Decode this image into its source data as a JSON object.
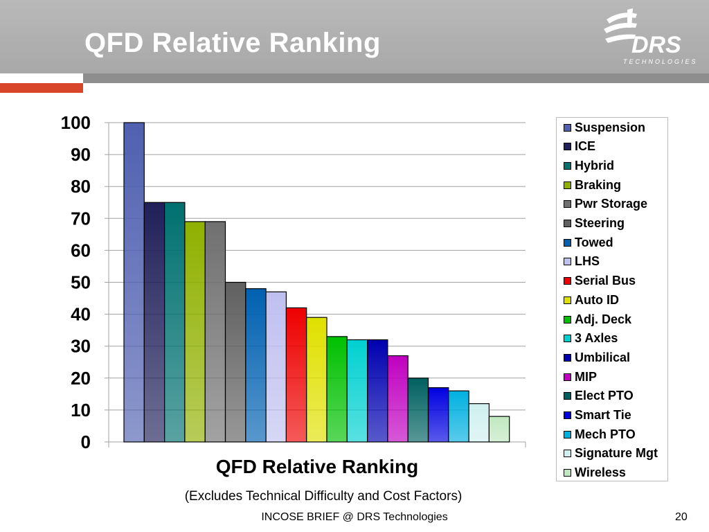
{
  "slide": {
    "title": "QFD Relative Ranking",
    "footer": "INCOSE BRIEF @ DRS Technologies",
    "page_number": "20",
    "logo_text": "DRS",
    "logo_subtext": "TECHNOLOGIES"
  },
  "chart_data": {
    "type": "bar",
    "xlabel": "QFD Relative Ranking",
    "subtitle": "(Excludes Technical Difficulty and Cost Factors)",
    "ylabel": "",
    "ylim": [
      0,
      100
    ],
    "yticks": [
      "0",
      "10",
      "20",
      "30",
      "40",
      "50",
      "60",
      "70",
      "80",
      "90",
      "100"
    ],
    "grid": true,
    "legend_position": "right",
    "series": [
      {
        "name": "Suspension",
        "value": 100,
        "color": "#5060b0"
      },
      {
        "name": "ICE",
        "value": 75,
        "color": "#20205a"
      },
      {
        "name": "Hybrid",
        "value": 75,
        "color": "#007070"
      },
      {
        "name": "Braking",
        "value": 69,
        "color": "#90b000"
      },
      {
        "name": "Pwr Storage",
        "value": 69,
        "color": "#707070"
      },
      {
        "name": "Steering",
        "value": 50,
        "color": "#606060"
      },
      {
        "name": "Towed",
        "value": 48,
        "color": "#0060b0"
      },
      {
        "name": "LHS",
        "value": 47,
        "color": "#c0c0f0"
      },
      {
        "name": "Serial Bus",
        "value": 42,
        "color": "#ee0000"
      },
      {
        "name": "Auto ID",
        "value": 39,
        "color": "#e0e000"
      },
      {
        "name": "Adj. Deck",
        "value": 33,
        "color": "#00c000"
      },
      {
        "name": "3 Axles",
        "value": 32,
        "color": "#00d0d0"
      },
      {
        "name": "Umbilical",
        "value": 32,
        "color": "#0000b0"
      },
      {
        "name": "MIP",
        "value": 27,
        "color": "#c000c0"
      },
      {
        "name": "Elect PTO",
        "value": 20,
        "color": "#006060"
      },
      {
        "name": "Smart Tie",
        "value": 17,
        "color": "#0000e0"
      },
      {
        "name": "Mech PTO",
        "value": 16,
        "color": "#00b0e0"
      },
      {
        "name": "Signature Mgt",
        "value": 12,
        "color": "#d0f0f0"
      },
      {
        "name": "Wireless",
        "value": 8,
        "color": "#c0e8c0"
      }
    ]
  }
}
